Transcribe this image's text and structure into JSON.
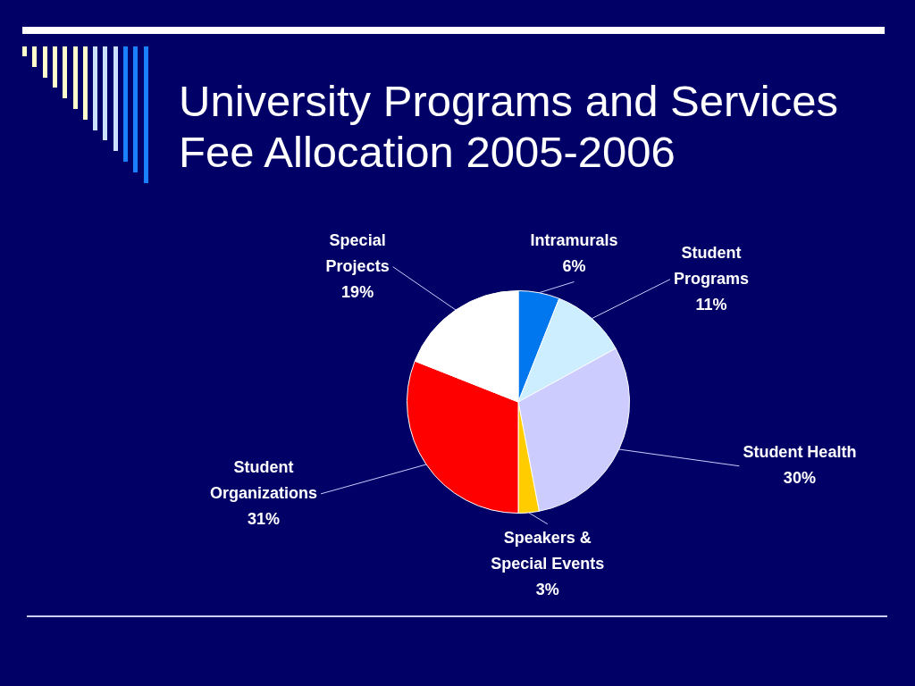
{
  "chart_data": {
    "type": "pie",
    "title": "University Programs and Services Fee Allocation 2005-2006",
    "categories": [
      "Intramurals",
      "Student Programs",
      "Student Health",
      "Speakers & Special Events",
      "Student Organizations",
      "Special Projects"
    ],
    "values": [
      6,
      11,
      30,
      3,
      31,
      19
    ],
    "colors": [
      "#0077ee",
      "#cceeff",
      "#ccccff",
      "#ffcc00",
      "#ff0000",
      "#ffffff"
    ],
    "value_labels": [
      "6%",
      "11%",
      "30%",
      "3%",
      "31%",
      "19%"
    ]
  }
}
